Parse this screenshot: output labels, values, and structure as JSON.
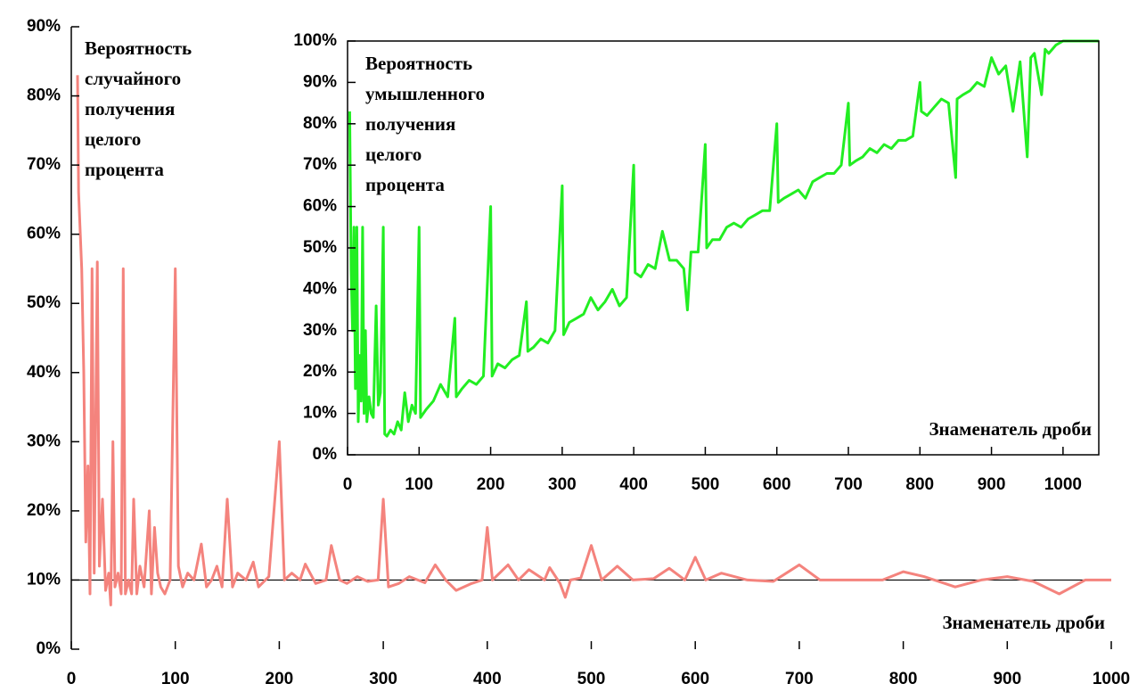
{
  "chart_data": [
    {
      "type": "line",
      "title": [
        "Вероятность",
        "случайного",
        "получения",
        "целого",
        "процента"
      ],
      "xlabel": "Знаменатель дроби",
      "x": [
        6,
        7,
        10,
        12,
        14,
        16,
        18,
        20,
        22,
        25,
        27,
        30,
        33,
        36,
        38,
        40,
        42,
        45,
        48,
        50,
        52,
        55,
        58,
        60,
        63,
        66,
        70,
        75,
        77,
        80,
        83,
        86,
        90,
        95,
        100,
        103,
        107,
        112,
        118,
        125,
        130,
        135,
        140,
        145,
        150,
        155,
        160,
        168,
        175,
        180,
        190,
        200,
        205,
        212,
        220,
        225,
        235,
        245,
        250,
        258,
        265,
        275,
        285,
        295,
        300,
        305,
        315,
        325,
        340,
        350,
        360,
        370,
        385,
        395,
        400,
        405,
        420,
        430,
        440,
        455,
        460,
        470,
        475,
        480,
        490,
        500,
        510,
        525,
        540,
        560,
        575,
        590,
        600,
        610,
        625,
        650,
        675,
        700,
        720,
        750,
        780,
        800,
        820,
        850,
        875,
        900,
        925,
        950,
        975,
        1000
      ],
      "series": [
        {
          "color": "#f4837d",
          "values": [
            83,
            66,
            55,
            40,
            15.5,
            26.5,
            8,
            55,
            11,
            56,
            12,
            21.7,
            8.5,
            11,
            6.4,
            30,
            9,
            11,
            8,
            55,
            8,
            10,
            8,
            21.7,
            8,
            12,
            9,
            20,
            8,
            17.6,
            11,
            9,
            8,
            10,
            55,
            12,
            9,
            11,
            10,
            15.2,
            9,
            10,
            12,
            9,
            21.7,
            9,
            11,
            10,
            12.6,
            9,
            10.5,
            30,
            10,
            11,
            10,
            12.3,
            9.5,
            10,
            15,
            10,
            9.5,
            10.5,
            9.8,
            10,
            21.7,
            9,
            9.5,
            10.5,
            9.6,
            12.2,
            10,
            8.5,
            9.5,
            10,
            17.6,
            10,
            12.2,
            10,
            11.5,
            10,
            11.8,
            9.5,
            7.5,
            10,
            10.3,
            15,
            10,
            12,
            10,
            10.2,
            11.7,
            10,
            13.3,
            10,
            11,
            10,
            9.8,
            12.2,
            10,
            10,
            10,
            11.2,
            10.5,
            9,
            10,
            10.5,
            9.8,
            8,
            10,
            10
          ]
        }
      ],
      "xlim": [
        0,
        1000
      ],
      "xticks": [
        0,
        100,
        200,
        300,
        400,
        500,
        600,
        700,
        800,
        900,
        1000
      ],
      "ylim": [
        0,
        90
      ],
      "yticks": [
        {
          "value": 0,
          "label": "0%"
        },
        {
          "value": 10,
          "label": "10%"
        },
        {
          "value": 20,
          "label": "20%"
        },
        {
          "value": 30,
          "label": "30%"
        },
        {
          "value": 40,
          "label": "40%"
        },
        {
          "value": 50,
          "label": "50%"
        },
        {
          "value": 60,
          "label": "60%"
        },
        {
          "value": 70,
          "label": "70%"
        },
        {
          "value": 80,
          "label": "80%"
        },
        {
          "value": 90,
          "label": "90%"
        }
      ],
      "hline": 10,
      "frame": false
    },
    {
      "type": "line",
      "title": [
        "Вероятность",
        "умышленного",
        "получения",
        "целого",
        "процента"
      ],
      "xlabel": "Знаменатель дроби",
      "x": [
        3,
        5,
        7,
        9,
        11,
        13,
        15,
        17,
        19,
        21,
        23,
        25,
        27,
        30,
        33,
        36,
        40,
        43,
        46,
        50,
        52,
        55,
        60,
        65,
        70,
        75,
        80,
        85,
        90,
        95,
        100,
        102,
        110,
        120,
        130,
        140,
        150,
        152,
        160,
        170,
        180,
        190,
        200,
        202,
        210,
        220,
        230,
        240,
        250,
        252,
        260,
        270,
        280,
        290,
        300,
        302,
        310,
        320,
        330,
        340,
        350,
        360,
        370,
        380,
        390,
        400,
        402,
        410,
        420,
        430,
        440,
        450,
        460,
        470,
        475,
        480,
        490,
        500,
        502,
        510,
        520,
        530,
        540,
        550,
        560,
        570,
        580,
        590,
        600,
        602,
        610,
        620,
        630,
        640,
        650,
        660,
        670,
        680,
        690,
        700,
        702,
        710,
        720,
        730,
        740,
        750,
        760,
        770,
        780,
        790,
        800,
        802,
        810,
        820,
        830,
        840,
        850,
        852,
        860,
        870,
        880,
        890,
        900,
        910,
        920,
        930,
        940,
        950,
        955,
        960,
        970,
        975,
        980,
        990,
        1000,
        1050
      ],
      "series": [
        {
          "color": "#22ee22",
          "values": [
            83,
            45,
            30,
            55,
            16,
            55,
            8,
            24,
            13,
            55,
            10,
            30,
            8,
            14,
            10,
            9,
            36,
            12,
            15,
            55,
            5,
            4.5,
            6,
            5,
            8,
            6,
            15,
            8,
            12,
            10,
            55,
            9,
            11,
            13,
            17,
            14,
            33,
            14,
            16,
            18,
            17,
            19,
            60,
            19,
            22,
            21,
            23,
            24,
            37,
            25,
            26,
            28,
            27,
            30,
            65,
            29,
            32,
            33,
            34,
            38,
            35,
            37,
            40,
            36,
            38,
            70,
            44,
            43,
            46,
            45,
            54,
            47,
            47,
            45,
            35,
            49,
            49,
            75,
            50,
            52,
            52,
            55,
            56,
            55,
            57,
            58,
            59,
            59,
            80,
            61,
            62,
            63,
            64,
            62,
            66,
            67,
            68,
            68,
            70,
            85,
            70,
            71,
            72,
            74,
            73,
            75,
            74,
            76,
            76,
            77,
            90,
            83,
            82,
            84,
            86,
            85,
            67,
            86,
            87,
            88,
            90,
            89,
            96,
            92,
            94,
            83,
            95,
            72,
            96,
            97,
            87,
            98,
            97,
            99,
            100,
            100
          ]
        }
      ],
      "xlim": [
        0,
        1050
      ],
      "xticks": [
        0,
        100,
        200,
        300,
        400,
        500,
        600,
        700,
        800,
        900,
        1000
      ],
      "ylim": [
        0,
        100
      ],
      "yticks": [
        {
          "value": 0,
          "label": "0%"
        },
        {
          "value": 10,
          "label": "10%"
        },
        {
          "value": 20,
          "label": "20%"
        },
        {
          "value": 30,
          "label": "30%"
        },
        {
          "value": 40,
          "label": "40%"
        },
        {
          "value": 50,
          "label": "50%"
        },
        {
          "value": 60,
          "label": "60%"
        },
        {
          "value": 70,
          "label": "70%"
        },
        {
          "value": 80,
          "label": "80%"
        },
        {
          "value": 90,
          "label": "90%"
        },
        {
          "value": 100,
          "label": "100%"
        }
      ],
      "frame": true
    }
  ]
}
